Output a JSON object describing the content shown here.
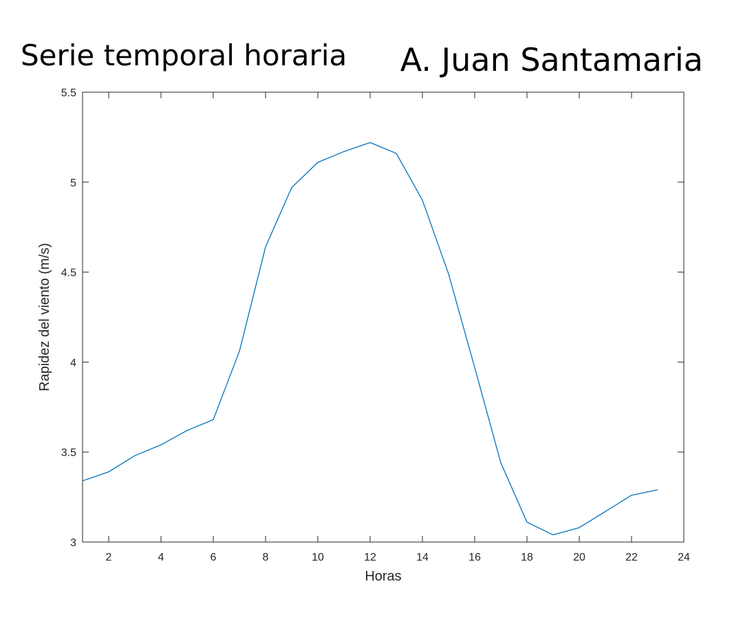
{
  "chart_data": {
    "type": "line",
    "title_left": "Serie temporal horaria",
    "title_right": "A. Juan Santamaria",
    "xlabel": "Horas",
    "ylabel": "Rapidez del viento (m/s)",
    "xlim": [
      1,
      24
    ],
    "ylim": [
      3,
      5.5
    ],
    "xticks": [
      2,
      4,
      6,
      8,
      10,
      12,
      14,
      16,
      18,
      20,
      22,
      24
    ],
    "yticks": [
      3,
      3.5,
      4,
      4.5,
      5,
      5.5
    ],
    "xtick_labels": [
      "2",
      "4",
      "6",
      "8",
      "10",
      "12",
      "14",
      "16",
      "18",
      "20",
      "22",
      "24"
    ],
    "ytick_labels": [
      "3",
      "3.5",
      "4",
      "4.5",
      "5",
      "5.5"
    ],
    "grid": false,
    "series": [
      {
        "color": "#0072BD",
        "x": [
          1,
          2,
          3,
          4,
          5,
          6,
          7,
          8,
          9,
          10,
          11,
          12,
          13,
          14,
          15,
          16,
          17,
          18,
          19,
          20,
          21,
          22,
          23
        ],
        "y": [
          3.34,
          3.39,
          3.48,
          3.54,
          3.62,
          3.68,
          4.06,
          4.64,
          4.97,
          5.11,
          5.17,
          5.22,
          5.16,
          4.9,
          4.49,
          3.97,
          3.44,
          3.11,
          3.04,
          3.08,
          3.17,
          3.26,
          3.29
        ]
      }
    ]
  }
}
